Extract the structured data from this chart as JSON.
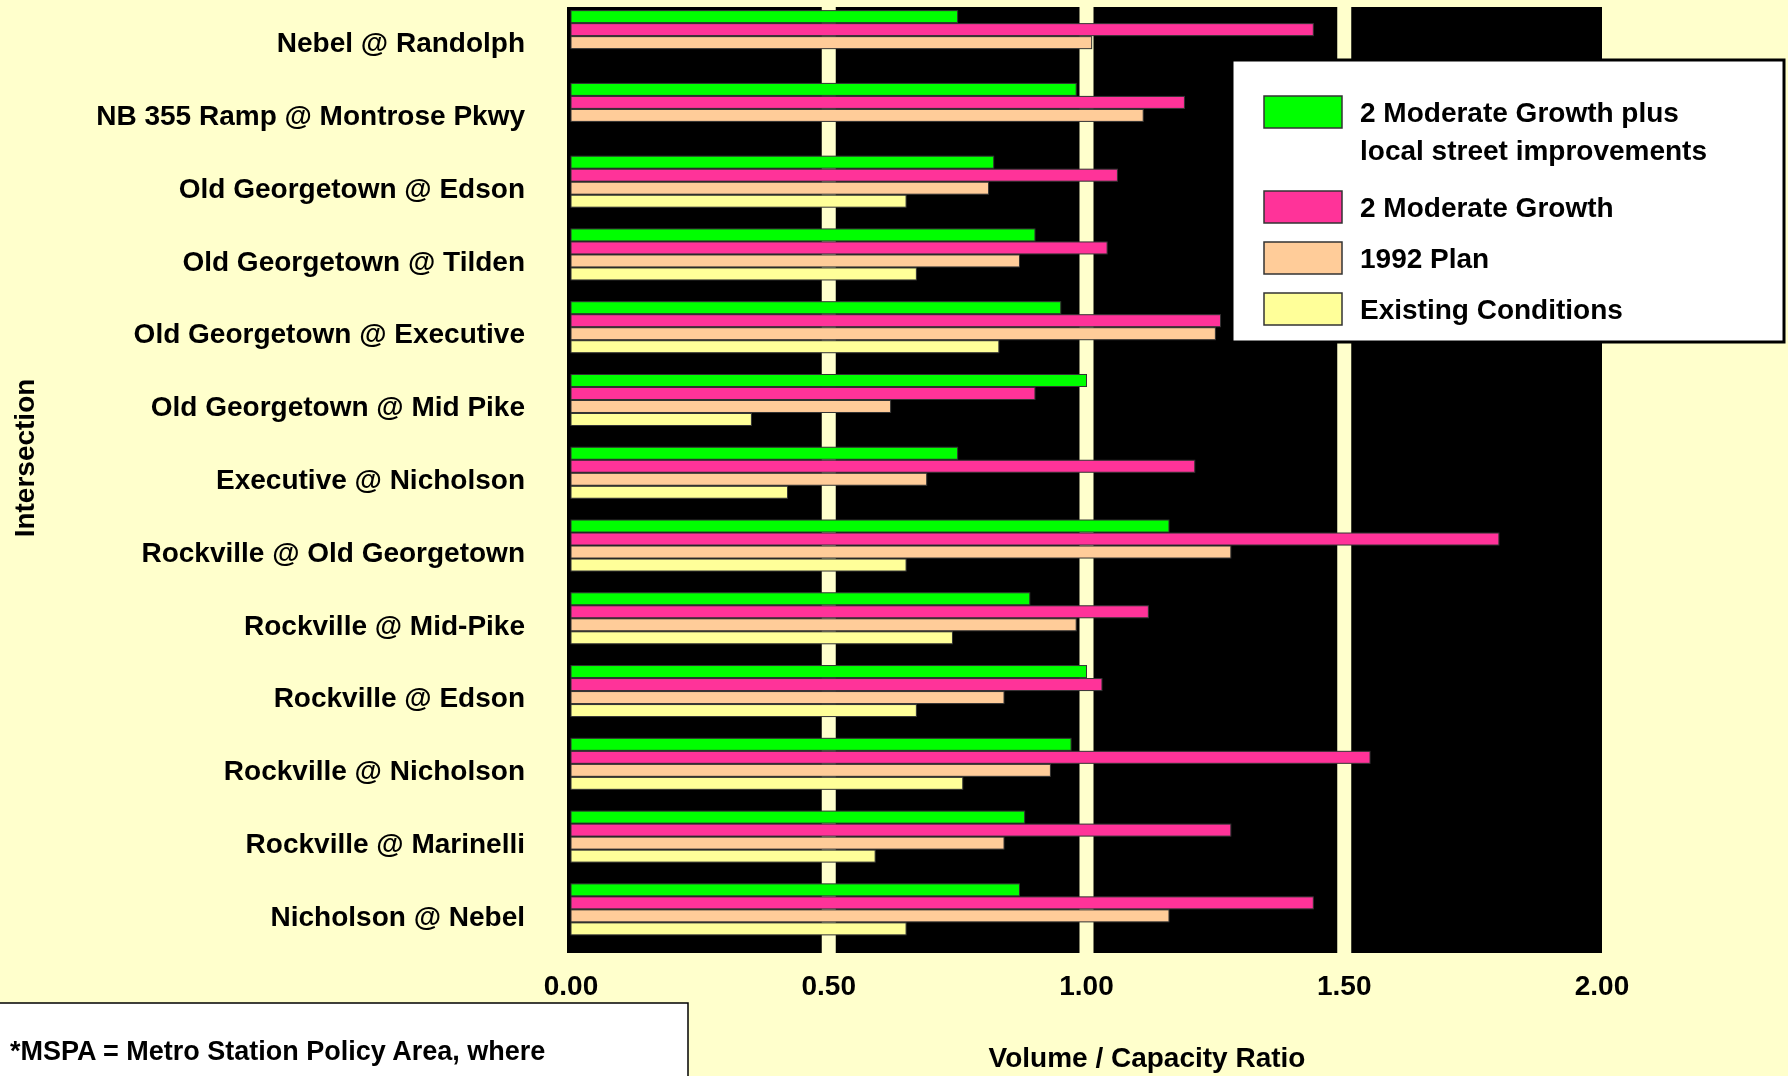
{
  "chart_data": {
    "type": "bar",
    "orientation": "horizontal",
    "xlabel": "Volume / Capacity Ratio",
    "ylabel": "Intersection",
    "categories": [
      "Nebel @ Randolph",
      "NB 355 Ramp @ Montrose Pkwy",
      "Old Georgetown @ Edson",
      "Old Georgetown @ Tilden",
      "Old Georgetown @ Executive",
      "Old Georgetown @ Mid Pike",
      "Executive @ Nicholson",
      "Rockville @ Old Georgetown",
      "Rockville @ Mid-Pike",
      "Rockville @ Edson",
      "Rockville @ Nicholson",
      "Rockville @ Marinelli",
      "Nicholson @ Nebel"
    ],
    "series": [
      {
        "name": "2  Moderate Growth plus local street improvements",
        "color": "#00ff00",
        "values": [
          0.75,
          0.98,
          0.82,
          0.9,
          0.95,
          1.0,
          0.75,
          1.16,
          0.89,
          1.0,
          0.97,
          0.88,
          0.87
        ]
      },
      {
        "name": "2  Moderate Growth",
        "color": "#ff3399",
        "values": [
          1.44,
          1.19,
          1.06,
          1.04,
          1.26,
          0.9,
          1.21,
          1.8,
          1.12,
          1.03,
          1.55,
          1.28,
          1.44
        ]
      },
      {
        "name": "1992 Plan",
        "color": "#ffcc99",
        "values": [
          1.01,
          1.11,
          0.81,
          0.87,
          1.25,
          0.62,
          0.69,
          1.28,
          0.98,
          0.84,
          0.93,
          0.84,
          1.16
        ]
      },
      {
        "name": "Existing Conditions",
        "color": "#ffff99",
        "values": [
          null,
          null,
          0.65,
          0.67,
          0.83,
          0.35,
          0.42,
          0.65,
          0.74,
          0.67,
          0.76,
          0.59,
          0.65
        ]
      }
    ],
    "xlim": [
      0,
      2
    ],
    "xticks": [
      {
        "value": 0,
        "label": "0.00"
      },
      {
        "value": 0.5,
        "label": "0.50"
      },
      {
        "value": 1,
        "label": "1.00"
      },
      {
        "value": 1.5,
        "label": "1.50"
      },
      {
        "value": 2,
        "label": "2.00"
      }
    ],
    "ref_lines": [
      {
        "axis": "x",
        "value": 0.5,
        "color": "#ffffcc"
      },
      {
        "axis": "x",
        "value": 1,
        "color": "#ffffcc"
      },
      {
        "axis": "x",
        "value": 1.5,
        "color": "#ffffcc"
      }
    ],
    "legend": "top right",
    "annotations": [
      "*MSPA = Metro Station Policy Area, where"
    ]
  }
}
